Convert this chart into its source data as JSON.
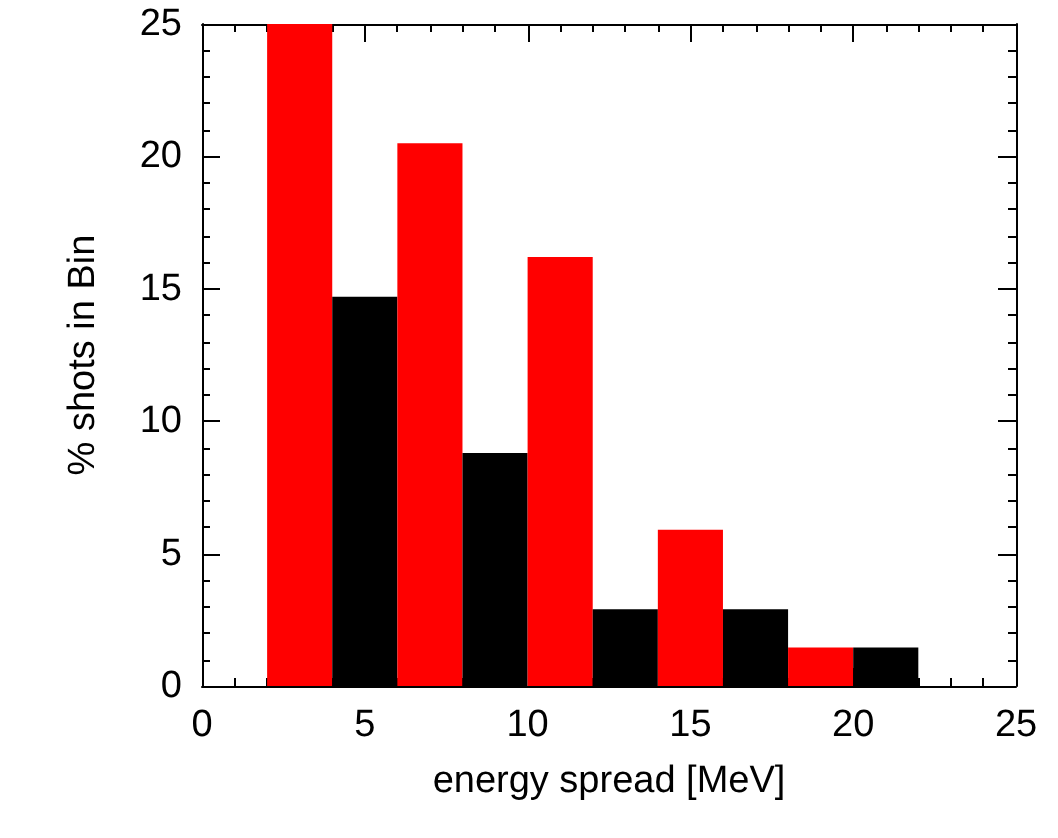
{
  "chart_data": {
    "type": "histogram",
    "xlabel": "energy spread [MeV]",
    "ylabel": "% shots in Bin",
    "bins": [
      2,
      4,
      6,
      8,
      10,
      12,
      14,
      16,
      18,
      20,
      22
    ],
    "values": [
      25,
      14.7,
      20.5,
      8.8,
      16.2,
      2.9,
      5.9,
      2.9,
      1.45,
      1.45
    ],
    "colors": [
      "#ff0000",
      "#000000",
      "#ff0000",
      "#000000",
      "#ff0000",
      "#000000",
      "#ff0000",
      "#000000",
      "#ff0000",
      "#000000"
    ],
    "xlim": [
      0,
      25
    ],
    "xticks": [
      0,
      5,
      10,
      15,
      20,
      25
    ],
    "ylim": [
      0,
      25
    ],
    "yticks": [
      0,
      5,
      10,
      15,
      20,
      25
    ],
    "grid": false
  }
}
